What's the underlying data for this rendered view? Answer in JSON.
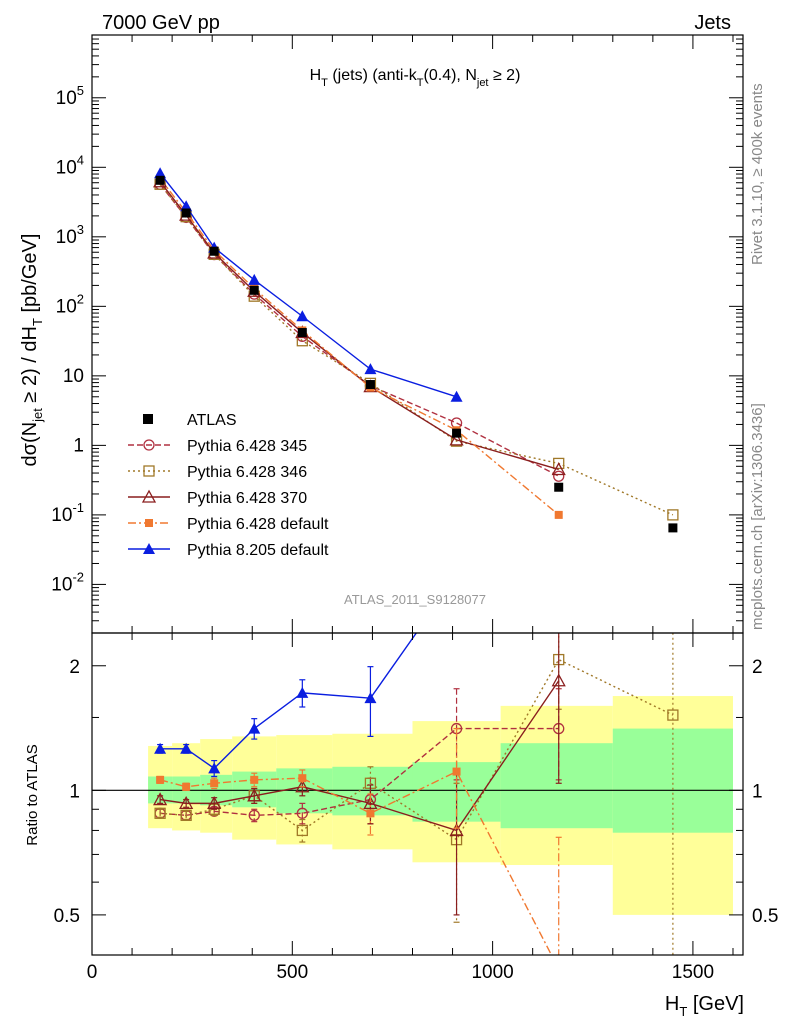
{
  "header": {
    "left_label": "7000 GeV pp",
    "right_label": "Jets"
  },
  "side_labels": {
    "rivet": "Rivet 3.1.10, ≥ 400k events",
    "source": "mcplots.cern.ch [arXiv:1306.3436]"
  },
  "chart_data": {
    "type": "line",
    "title_parts": [
      "H",
      "T",
      " (jets) (anti-k",
      "T",
      "(0.4), N",
      "jet",
      " ≥ 2)"
    ],
    "analysis_label": "ATLAS_2011_S9128077",
    "xlabel_parts": [
      "H",
      "T",
      " [GeV]"
    ],
    "ylabel_parts": [
      "dσ(N",
      "jet",
      " ≥ 2) / dH",
      "T",
      " [pb/GeV]"
    ],
    "ratio_ylabel": "Ratio to ATLAS",
    "xlim": [
      0,
      1625
    ],
    "ylim_log": [
      0.002,
      800000
    ],
    "ratio_ylim": [
      0.4,
      2.4
    ],
    "x_ticks": [
      0,
      500,
      1000,
      1500
    ],
    "x_tick_labels": [
      "0",
      "500",
      "1000",
      "1500"
    ],
    "y_major_ticks": [
      {
        "value": 0.01,
        "base": "10",
        "exp": "-2"
      },
      {
        "value": 0.1,
        "base": "10",
        "exp": "-1"
      },
      {
        "value": 1,
        "base": "1",
        "exp": ""
      },
      {
        "value": 10,
        "base": "10",
        "exp": ""
      },
      {
        "value": 100,
        "base": "10",
        "exp": "2"
      },
      {
        "value": 1000,
        "base": "10",
        "exp": "3"
      },
      {
        "value": 10000,
        "base": "10",
        "exp": "4"
      },
      {
        "value": 100000,
        "base": "10",
        "exp": "5"
      }
    ],
    "ratio_ticks": [
      {
        "value": 0.5,
        "label": "0.5"
      },
      {
        "value": 1,
        "label": "1"
      },
      {
        "value": 2,
        "label": "2"
      }
    ],
    "bin_edges": [
      140,
      200,
      270,
      350,
      460,
      600,
      800,
      1020,
      1300,
      1600
    ],
    "band_inner": [
      [
        0.93,
        1.08
      ],
      [
        0.93,
        1.08
      ],
      [
        0.92,
        1.09
      ],
      [
        0.91,
        1.11
      ],
      [
        0.88,
        1.13
      ],
      [
        0.87,
        1.14
      ],
      [
        0.84,
        1.17
      ],
      [
        0.81,
        1.3
      ],
      [
        0.79,
        1.41
      ]
    ],
    "band_outer": [
      [
        0.81,
        1.28
      ],
      [
        0.8,
        1.3
      ],
      [
        0.79,
        1.33
      ],
      [
        0.76,
        1.35
      ],
      [
        0.74,
        1.36
      ],
      [
        0.72,
        1.37
      ],
      [
        0.67,
        1.47
      ],
      [
        0.66,
        1.6
      ],
      [
        0.5,
        1.69
      ]
    ],
    "x": [
      170,
      235,
      305,
      405,
      525,
      695,
      910,
      1165,
      1450
    ],
    "data": {
      "name": "ATLAS",
      "values": [
        6500,
        2200,
        620,
        170,
        42,
        7.5,
        1.5,
        0.25,
        0.065
      ],
      "color": "#000000"
    },
    "series": [
      {
        "name": "Pythia 6.428 345",
        "color": "#b03040",
        "marker": "circle-open",
        "dash": "6,3",
        "values": [
          5700,
          1900,
          555,
          150,
          37,
          7.2,
          2.1,
          0.36,
          null
        ],
        "ratio": [
          0.88,
          0.87,
          0.89,
          0.87,
          0.88,
          0.95,
          1.41,
          1.41,
          null
        ],
        "ratio_err": [
          0.02,
          0.02,
          0.02,
          0.03,
          0.05,
          0.12,
          0.35,
          0.35,
          null
        ]
      },
      {
        "name": "Pythia 6.428 346",
        "color": "#a07828",
        "marker": "square-open",
        "dash": "2,3",
        "values": [
          5700,
          1950,
          560,
          140,
          32,
          7.8,
          1.15,
          0.55,
          0.1
        ],
        "ratio": [
          0.88,
          0.87,
          0.9,
          0.97,
          0.8,
          1.04,
          0.76,
          2.07,
          1.52
        ],
        "ratio_err": [
          0.02,
          0.02,
          0.03,
          0.04,
          0.05,
          0.1,
          0.28,
          0.5,
          1.4
        ]
      },
      {
        "name": "Pythia 6.428 370",
        "color": "#8a1e1e",
        "marker": "triangle-open",
        "dash": "",
        "values": [
          6200,
          2050,
          585,
          165,
          42,
          7,
          1.2,
          0.45,
          null
        ],
        "ratio": [
          0.95,
          0.93,
          0.93,
          0.97,
          1.02,
          0.93,
          0.8,
          1.84,
          null
        ],
        "ratio_err": [
          0.02,
          0.02,
          0.03,
          0.04,
          0.05,
          0.1,
          0.3,
          0.8,
          null
        ]
      },
      {
        "name": "Pythia 6.428 default",
        "color": "#f07830",
        "marker": "square-filled",
        "dash": "8,3,2,3",
        "values": [
          6900,
          2250,
          640,
          180,
          45,
          6.8,
          1.65,
          0.1,
          null
        ],
        "ratio": [
          1.06,
          1.02,
          1.04,
          1.06,
          1.07,
          0.88,
          1.11,
          0.37,
          null
        ],
        "ratio_err": [
          0.02,
          0.02,
          0.03,
          0.04,
          0.05,
          0.1,
          0.3,
          0.4,
          null
        ]
      },
      {
        "name": "Pythia 8.205 default",
        "color": "#0a1ee0",
        "marker": "triangle-filled",
        "dash": "",
        "values": [
          8200,
          2750,
          700,
          240,
          72,
          12.5,
          5,
          null,
          null
        ],
        "ratio": [
          1.26,
          1.26,
          1.13,
          1.41,
          1.72,
          1.67,
          3.3,
          null,
          null
        ],
        "ratio_err": [
          0.03,
          0.03,
          0.05,
          0.08,
          0.13,
          0.32,
          0.8,
          null,
          null
        ]
      }
    ]
  }
}
